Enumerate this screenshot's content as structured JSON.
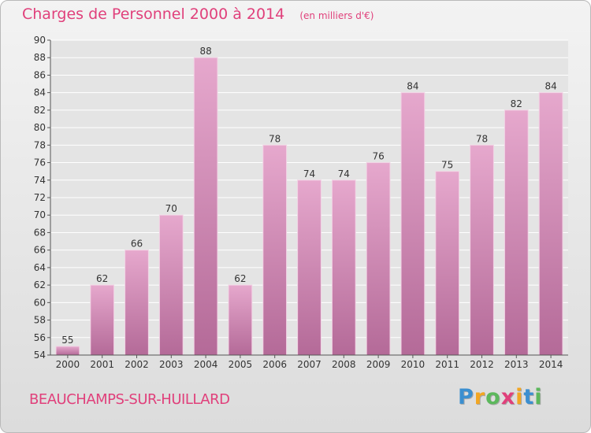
{
  "header": {
    "title": "Charges de Personnel 2000 à 2014",
    "subtitle": "(en milliers d'€)"
  },
  "footer": {
    "commune": "BEAUCHAMPS-SUR-HUILLARD",
    "logo_letters": [
      "P",
      "r",
      "o",
      "x",
      "i",
      "t",
      "i"
    ],
    "logo_colors": [
      "#3b8fd0",
      "#f2a623",
      "#5cb85c",
      "#e0407b",
      "#f2a623",
      "#3b8fd0",
      "#5cb85c"
    ]
  },
  "chart_data": {
    "type": "bar",
    "title": "Charges de Personnel 2000 à 2014",
    "subtitle": "(en milliers d'€)",
    "xlabel": "",
    "ylabel": "",
    "categories": [
      "2000",
      "2001",
      "2002",
      "2003",
      "2004",
      "2005",
      "2006",
      "2007",
      "2008",
      "2009",
      "2010",
      "2011",
      "2012",
      "2013",
      "2014"
    ],
    "values": [
      55,
      62,
      66,
      70,
      88,
      62,
      78,
      74,
      74,
      76,
      84,
      75,
      78,
      82,
      84
    ],
    "ylim": [
      54,
      90
    ],
    "yticks": [
      54,
      56,
      58,
      60,
      62,
      64,
      66,
      68,
      70,
      72,
      74,
      76,
      78,
      80,
      82,
      84,
      86,
      88,
      90
    ],
    "grid": true,
    "bar_color_top": "#e6a8cd",
    "bar_color_bottom": "#b46a98"
  }
}
